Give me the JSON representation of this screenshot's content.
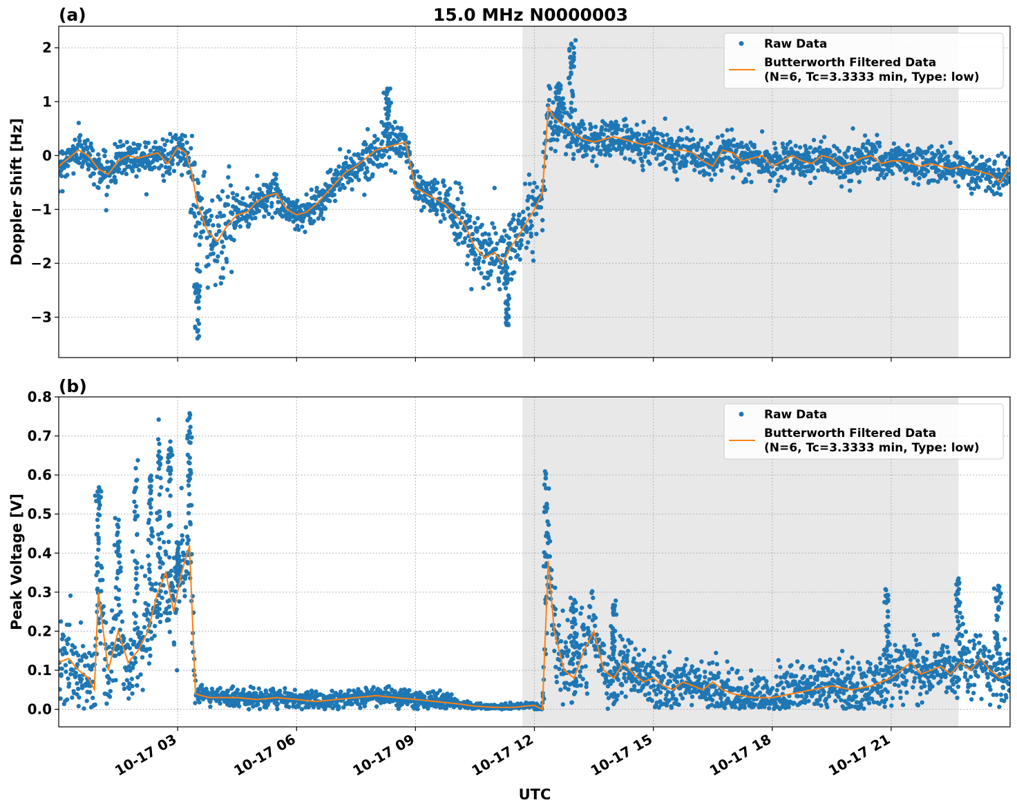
{
  "title": "15.0 MHz N0000003",
  "xlabel": "UTC",
  "colors": {
    "raw": "#1f77b4",
    "filtered": "#ff7f0e",
    "shade": "#e8e8e8"
  },
  "x_tick_labels": [
    "10-17 03",
    "10-17 06",
    "10-17 09",
    "10-17 12",
    "10-17 15",
    "10-17 18",
    "10-17 21"
  ],
  "chart_data": [
    {
      "type": "scatter",
      "panel_label": "(a)",
      "ylabel": "Doppler Shift [Hz]",
      "xlim_hours": [
        0,
        24
      ],
      "ylim": [
        -3.75,
        2.4
      ],
      "y_ticks": [
        -3,
        -2,
        -1,
        0,
        1,
        2
      ],
      "y_tick_labels": [
        "−3",
        "−2",
        "−1",
        "0",
        "1",
        "2"
      ],
      "x_ticks_hours": [
        3,
        6,
        9,
        12,
        15,
        18,
        21
      ],
      "shaded_region_hours": [
        11.7,
        22.7
      ],
      "grid": true,
      "legend_placement": "top-right",
      "legend": {
        "raw": "Raw Data",
        "filtered_line1": "Butterworth Filtered Data",
        "filtered_line2": "(N=6, Tc=3.3333 min, Type: low)"
      },
      "series": [
        {
          "name": "Raw Data",
          "kind": "scatter"
        },
        {
          "name": "Butterworth Filtered Data",
          "kind": "line",
          "x": [
            0,
            0.25,
            0.5,
            0.75,
            1,
            1.25,
            1.5,
            1.75,
            2,
            2.25,
            2.5,
            2.75,
            3,
            3.2,
            3.35,
            3.5,
            3.75,
            4,
            4.25,
            4.5,
            4.75,
            5,
            5.25,
            5.5,
            5.75,
            6,
            6.25,
            6.5,
            6.75,
            7,
            7.25,
            7.5,
            7.75,
            8,
            8.25,
            8.5,
            8.75,
            9,
            9.25,
            9.5,
            9.75,
            10,
            10.25,
            10.5,
            10.75,
            11,
            11.2,
            11.4,
            11.6,
            11.75,
            12,
            12.2,
            12.35,
            12.5,
            12.75,
            13,
            13.25,
            13.5,
            13.75,
            14,
            14.25,
            14.5,
            14.75,
            15,
            15.25,
            15.5,
            15.75,
            16,
            16.25,
            16.5,
            16.75,
            17,
            17.25,
            17.5,
            17.75,
            18,
            18.25,
            18.5,
            18.75,
            19,
            19.25,
            19.5,
            19.75,
            20,
            20.25,
            20.5,
            20.75,
            21,
            21.25,
            21.5,
            21.75,
            22,
            22.25,
            22.5,
            22.75,
            23,
            23.25,
            23.5,
            23.75,
            24
          ],
          "y": [
            -0.2,
            -0.05,
            0.1,
            0.0,
            -0.25,
            -0.35,
            -0.1,
            0.0,
            -0.05,
            0.0,
            0.05,
            -0.15,
            0.15,
            0.05,
            -0.3,
            -0.9,
            -1.4,
            -1.6,
            -1.3,
            -1.1,
            -1.05,
            -0.85,
            -0.75,
            -0.7,
            -1.0,
            -1.1,
            -1.05,
            -0.9,
            -0.7,
            -0.5,
            -0.3,
            -0.2,
            -0.05,
            0.1,
            0.15,
            0.2,
            0.25,
            -0.6,
            -0.7,
            -0.8,
            -0.9,
            -1.1,
            -1.3,
            -1.7,
            -1.9,
            -1.8,
            -2.0,
            -1.7,
            -1.5,
            -1.3,
            -1.0,
            -0.7,
            0.9,
            0.7,
            0.55,
            0.4,
            0.3,
            0.25,
            0.3,
            0.35,
            0.3,
            0.25,
            0.2,
            0.25,
            0.15,
            0.1,
            0.1,
            0.05,
            -0.1,
            -0.2,
            0.1,
            0.05,
            -0.1,
            -0.05,
            0.0,
            -0.2,
            -0.1,
            0.0,
            -0.1,
            -0.15,
            0.0,
            -0.05,
            -0.2,
            -0.15,
            -0.05,
            0.0,
            -0.15,
            -0.1,
            -0.1,
            -0.15,
            -0.2,
            -0.15,
            -0.2,
            -0.25,
            -0.2,
            -0.25,
            -0.3,
            -0.35,
            -0.5,
            -0.2
          ]
        }
      ]
    },
    {
      "type": "scatter",
      "panel_label": "(b)",
      "ylabel": "Peak Voltage [V]",
      "xlim_hours": [
        0,
        24
      ],
      "ylim": [
        -0.045,
        0.8
      ],
      "y_ticks": [
        0.0,
        0.1,
        0.2,
        0.3,
        0.4,
        0.5,
        0.6,
        0.7,
        0.8
      ],
      "y_tick_labels": [
        "0.0",
        "0.1",
        "0.2",
        "0.3",
        "0.4",
        "0.5",
        "0.6",
        "0.7",
        "0.8"
      ],
      "x_ticks_hours": [
        3,
        6,
        9,
        12,
        15,
        18,
        21
      ],
      "shaded_region_hours": [
        11.7,
        22.7
      ],
      "grid": true,
      "legend_placement": "top-right",
      "legend": {
        "raw": "Raw Data",
        "filtered_line1": "Butterworth Filtered Data",
        "filtered_line2": "(N=6, Tc=3.3333 min, Type: low)"
      },
      "series": [
        {
          "name": "Raw Data",
          "kind": "scatter"
        },
        {
          "name": "Butterworth Filtered Data",
          "kind": "line",
          "x": [
            0,
            0.25,
            0.5,
            0.75,
            0.9,
            1,
            1.25,
            1.5,
            1.75,
            2,
            2.25,
            2.5,
            2.7,
            2.9,
            3.1,
            3.3,
            3.45,
            3.6,
            3.8,
            4,
            4.5,
            5,
            5.5,
            6,
            6.5,
            7,
            7.5,
            8,
            8.5,
            9,
            9.5,
            10,
            10.5,
            11,
            11.5,
            11.75,
            12,
            12.2,
            12.35,
            12.5,
            12.75,
            13,
            13.25,
            13.5,
            13.75,
            14,
            14.25,
            14.5,
            14.75,
            15,
            15.25,
            15.5,
            15.75,
            16,
            16.25,
            16.5,
            16.75,
            17,
            17.5,
            18,
            18.5,
            19,
            19.5,
            20,
            20.5,
            21,
            21.25,
            21.5,
            21.75,
            22,
            22.25,
            22.5,
            22.75,
            23,
            23.25,
            23.5,
            23.75,
            24
          ],
          "y": [
            0.12,
            0.13,
            0.1,
            0.08,
            0.05,
            0.3,
            0.1,
            0.2,
            0.12,
            0.15,
            0.2,
            0.3,
            0.35,
            0.25,
            0.35,
            0.42,
            0.04,
            0.035,
            0.03,
            0.03,
            0.03,
            0.025,
            0.03,
            0.025,
            0.02,
            0.025,
            0.03,
            0.035,
            0.03,
            0.025,
            0.02,
            0.015,
            0.008,
            0.005,
            0.005,
            0.008,
            0.01,
            0.0,
            0.38,
            0.2,
            0.1,
            0.08,
            0.15,
            0.2,
            0.1,
            0.08,
            0.12,
            0.09,
            0.07,
            0.08,
            0.06,
            0.05,
            0.07,
            0.06,
            0.05,
            0.07,
            0.05,
            0.04,
            0.03,
            0.03,
            0.04,
            0.05,
            0.06,
            0.05,
            0.06,
            0.08,
            0.1,
            0.12,
            0.09,
            0.1,
            0.11,
            0.09,
            0.12,
            0.1,
            0.13,
            0.1,
            0.08,
            0.09
          ]
        }
      ]
    }
  ]
}
